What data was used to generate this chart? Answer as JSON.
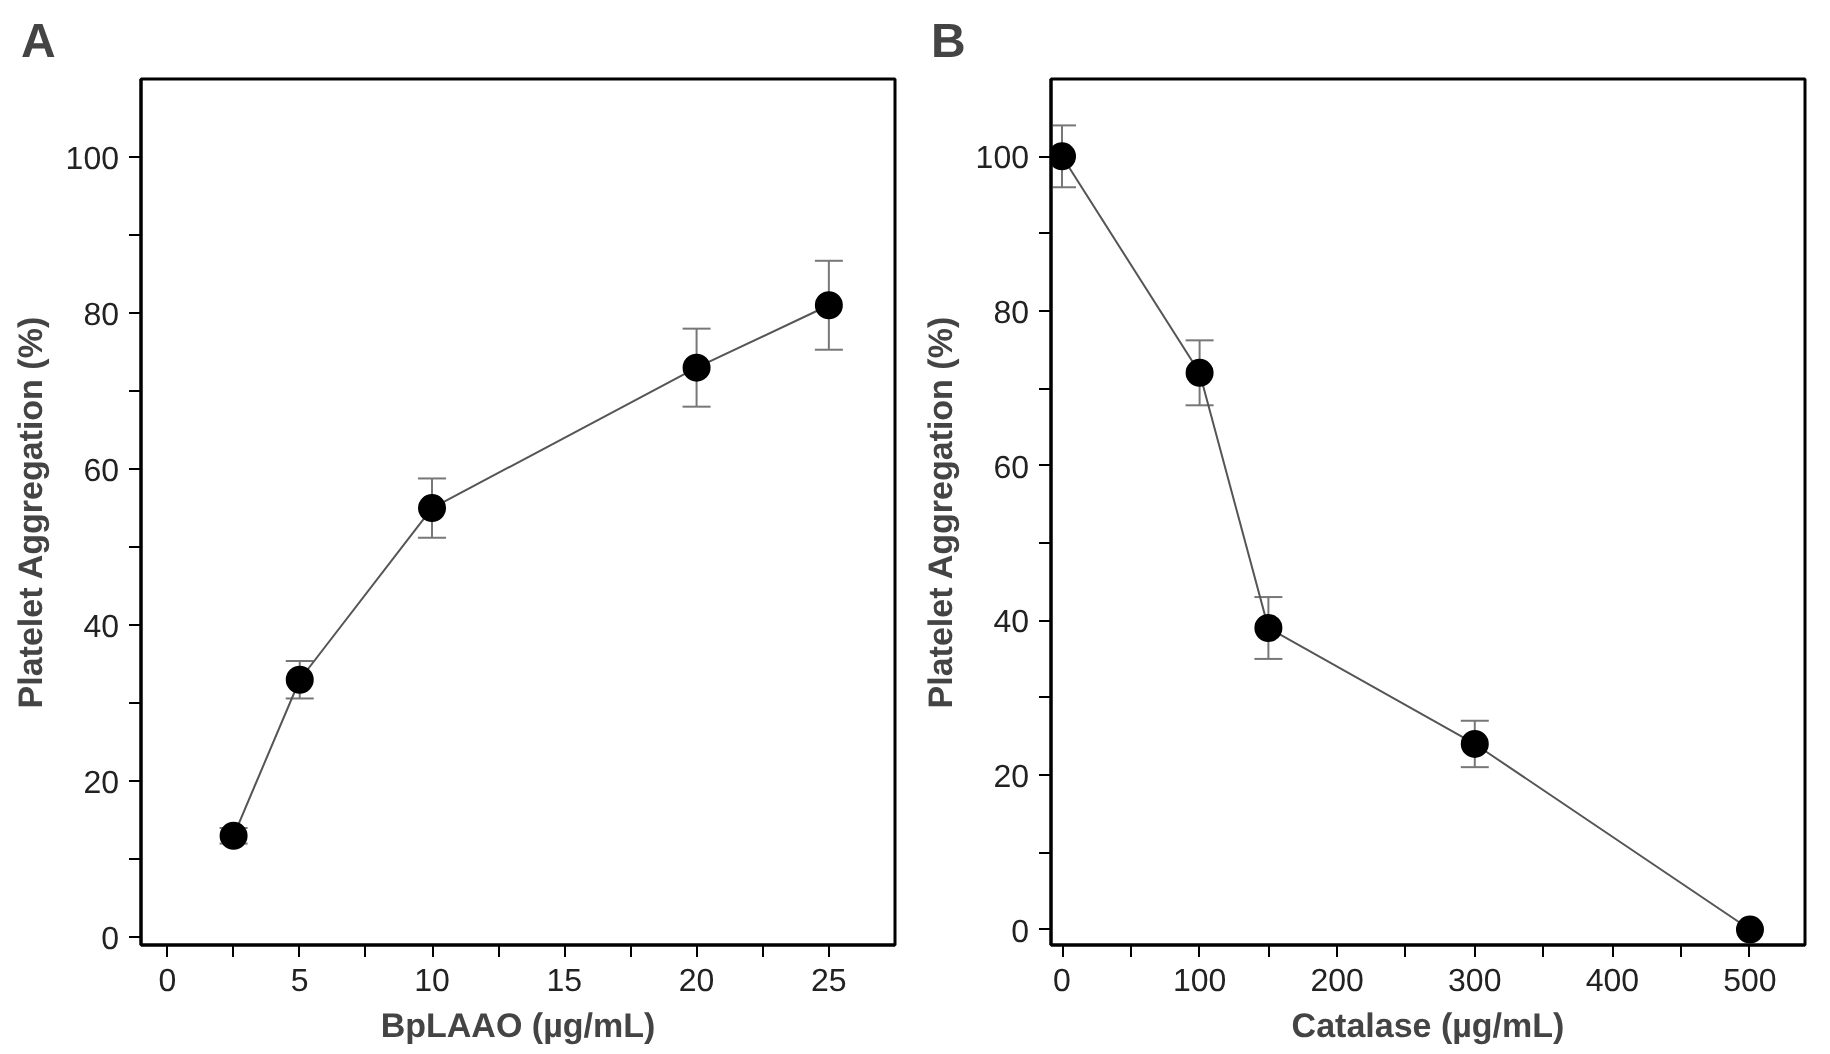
{
  "chart_data": [
    {
      "type": "line",
      "title": "A",
      "xlabel": "BpLAAO (µg/mL)",
      "ylabel": "Platelet Aggregation (%)",
      "x": [
        2.5,
        5,
        10,
        20,
        25
      ],
      "series": [
        {
          "color": "#000000",
          "values": [
            13,
            33,
            55,
            73,
            81
          ],
          "errors": [
            1,
            2.4,
            3.8,
            5,
            5.7
          ]
        }
      ],
      "marker": "circle",
      "line_style": "solid",
      "grid": false,
      "xlim": [
        -1,
        27.5
      ],
      "ylim": [
        -1,
        110
      ],
      "xticks": [
        0,
        {
          "value": 2.5,
          "label": null
        },
        5,
        {
          "value": 7.5,
          "label": null
        },
        10,
        {
          "value": 12.5,
          "label": null
        },
        15,
        {
          "value": 17.5,
          "label": null
        },
        20,
        {
          "value": 22.5,
          "label": null
        },
        25
      ],
      "yticks": [
        0,
        {
          "value": 10,
          "label": null
        },
        20,
        {
          "value": 30,
          "label": null
        },
        40,
        {
          "value": 50,
          "label": null
        },
        60,
        {
          "value": 70,
          "label": null
        },
        80,
        {
          "value": 90,
          "label": null
        },
        100
      ]
    },
    {
      "type": "line",
      "title": "B",
      "xlabel": "Catalase (µg/mL)",
      "ylabel": "Platelet Aggregation (%)",
      "x": [
        0,
        100,
        150,
        300,
        500
      ],
      "series": [
        {
          "color": "#000000",
          "values": [
            100,
            72,
            39,
            24,
            0
          ],
          "errors": [
            4,
            4.2,
            4,
            3,
            null
          ]
        }
      ],
      "marker": "circle",
      "line_style": "solid",
      "grid": false,
      "xlim": [
        -8,
        540
      ],
      "ylim": [
        -2,
        110
      ],
      "xticks": [
        0,
        {
          "value": 50,
          "label": null
        },
        100,
        {
          "value": 150,
          "label": null
        },
        200,
        {
          "value": 250,
          "label": null
        },
        300,
        {
          "value": 350,
          "label": null
        },
        400,
        {
          "value": 450,
          "label": null
        },
        500
      ],
      "yticks": [
        0,
        {
          "value": 10,
          "label": null
        },
        20,
        {
          "value": 30,
          "label": null
        },
        40,
        {
          "value": 50,
          "label": null
        },
        60,
        {
          "value": 70,
          "label": null
        },
        80,
        {
          "value": 90,
          "label": null
        },
        100
      ]
    }
  ]
}
